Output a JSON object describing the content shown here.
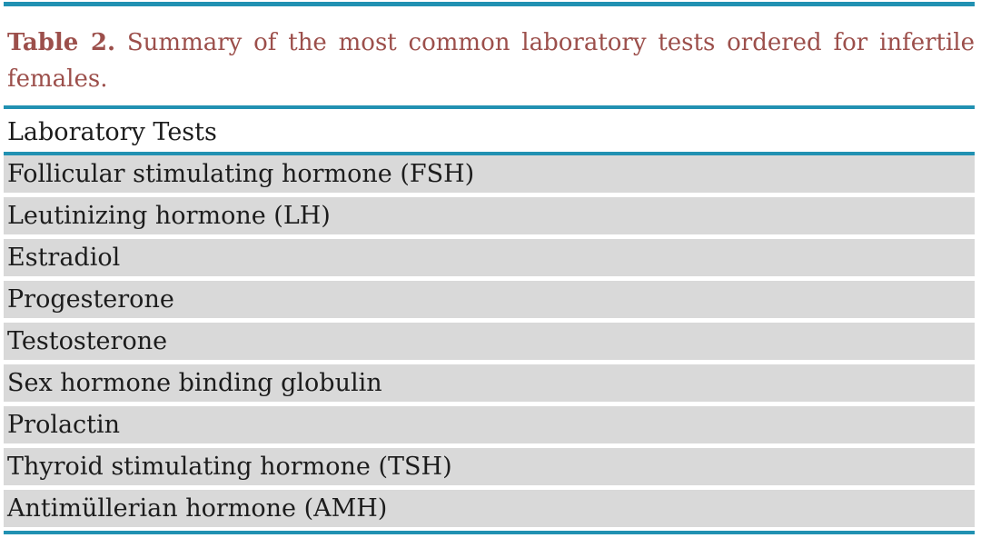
{
  "caption": {
    "label": "Table 2.",
    "text": "Summary of the most common laboratory tests ordered for infertile females."
  },
  "table": {
    "header": "Laboratory Tests",
    "rows": [
      "Follicular stimulating hormone (FSH)",
      "Leutinizing hormone (LH)",
      "Estradiol",
      "Progesterone",
      "Testosterone",
      "Sex hormone binding globulin",
      "Prolactin",
      "Thyroid stimulating hormone (TSH)",
      "Antimüllerian hormone (AMH)"
    ]
  },
  "colors": {
    "rule_teal": "#2191B2",
    "row_gray": "#D9D9D9",
    "caption_maroon": "#9C4F4B",
    "text_black": "#1C1C1C",
    "background": "#FFFFFF"
  }
}
